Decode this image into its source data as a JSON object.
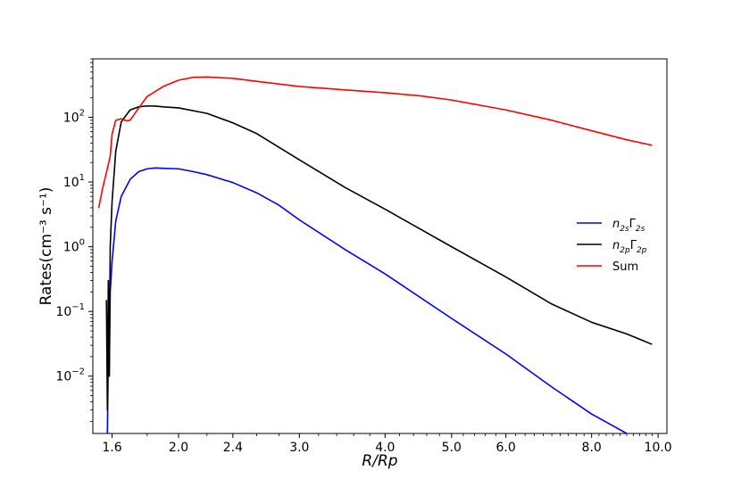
{
  "chart_data": {
    "type": "line",
    "xlabel": "R/Rp",
    "ylabel": "Rates(cm⁻³ s⁻¹)",
    "xscale": "log",
    "yscale": "log",
    "xlim": [
      1.5,
      10.3
    ],
    "ylim": [
      0.0013,
      800
    ],
    "xticks": [
      {
        "value": 1.6,
        "label": "1.6"
      },
      {
        "value": 2.0,
        "label": "2.0"
      },
      {
        "value": 2.4,
        "label": "2.4"
      },
      {
        "value": 3.0,
        "label": "3.0"
      },
      {
        "value": 4.0,
        "label": "4.0"
      },
      {
        "value": 5.0,
        "label": "5.0"
      },
      {
        "value": 6.0,
        "label": "6.0"
      },
      {
        "value": 8.0,
        "label": "8.0"
      },
      {
        "value": 10.0,
        "label": "10.0"
      }
    ],
    "yticks": [
      {
        "value": 0.01,
        "base": "10",
        "exp": "−2"
      },
      {
        "value": 0.1,
        "base": "10",
        "exp": "−1"
      },
      {
        "value": 1,
        "base": "10",
        "exp": "0"
      },
      {
        "value": 10,
        "base": "10",
        "exp": "1"
      },
      {
        "value": 100,
        "base": "10",
        "exp": "2"
      }
    ],
    "legend_position": "center-right",
    "grid": false,
    "series": [
      {
        "name": "n2sΓ2s",
        "color": "#0000ff",
        "x": [
          1.575,
          1.58,
          1.585,
          1.59,
          1.6,
          1.62,
          1.65,
          1.7,
          1.75,
          1.8,
          1.85,
          1.9,
          2.0,
          2.1,
          2.2,
          2.4,
          2.6,
          2.8,
          3.0,
          3.5,
          4.0,
          5.0,
          6.0,
          7.0,
          8.0,
          9.0
        ],
        "y": [
          0.0013,
          0.02,
          0.01,
          0.2,
          0.6,
          2.5,
          6.0,
          11.0,
          14.5,
          16.0,
          16.5,
          16.3,
          16.0,
          14.5,
          13.0,
          9.8,
          6.8,
          4.4,
          2.6,
          0.9,
          0.38,
          0.078,
          0.022,
          0.0068,
          0.0026,
          0.0013
        ]
      },
      {
        "name": "n2pΓ2p",
        "color": "#000000",
        "x": [
          1.57,
          1.575,
          1.58,
          1.585,
          1.59,
          1.6,
          1.62,
          1.65,
          1.7,
          1.75,
          1.8,
          1.85,
          1.9,
          2.0,
          2.2,
          2.4,
          2.6,
          3.0,
          3.5,
          4.0,
          5.0,
          6.0,
          7.0,
          8.0,
          9.0,
          9.8
        ],
        "y": [
          0.15,
          0.003,
          0.3,
          0.01,
          1.0,
          5.0,
          30.0,
          85.0,
          130.0,
          145.0,
          150.0,
          149.0,
          145.0,
          140.0,
          115.0,
          82.0,
          56.0,
          22.0,
          8.2,
          3.8,
          1.0,
          0.34,
          0.13,
          0.068,
          0.045,
          0.031
        ]
      },
      {
        "name": "Sum",
        "color": "#ff0000",
        "x": [
          1.53,
          1.55,
          1.57,
          1.59,
          1.6,
          1.62,
          1.65,
          1.68,
          1.7,
          1.75,
          1.8,
          1.9,
          2.0,
          2.1,
          2.2,
          2.4,
          2.6,
          3.0,
          3.5,
          4.0,
          4.5,
          5.0,
          6.0,
          7.0,
          8.0,
          9.0,
          9.8
        ],
        "y": [
          4.0,
          8.0,
          14.0,
          25.0,
          55.0,
          90.0,
          95.0,
          88.0,
          90.0,
          140.0,
          210.0,
          300.0,
          375.0,
          415.0,
          420.0,
          400.0,
          360.0,
          300.0,
          265.0,
          240.0,
          215.0,
          185.0,
          130.0,
          90.0,
          62.0,
          45.0,
          37.0
        ]
      }
    ],
    "legend": [
      {
        "base": "n",
        "sub1": "2s",
        "mid": "Γ",
        "sub2": "2s",
        "color": "#0000ff"
      },
      {
        "base": "n",
        "sub1": "2p",
        "mid": "Γ",
        "sub2": "2p",
        "color": "#000000"
      },
      {
        "base": "Sum",
        "sub1": "",
        "mid": "",
        "sub2": "",
        "color": "#ff0000"
      }
    ]
  }
}
